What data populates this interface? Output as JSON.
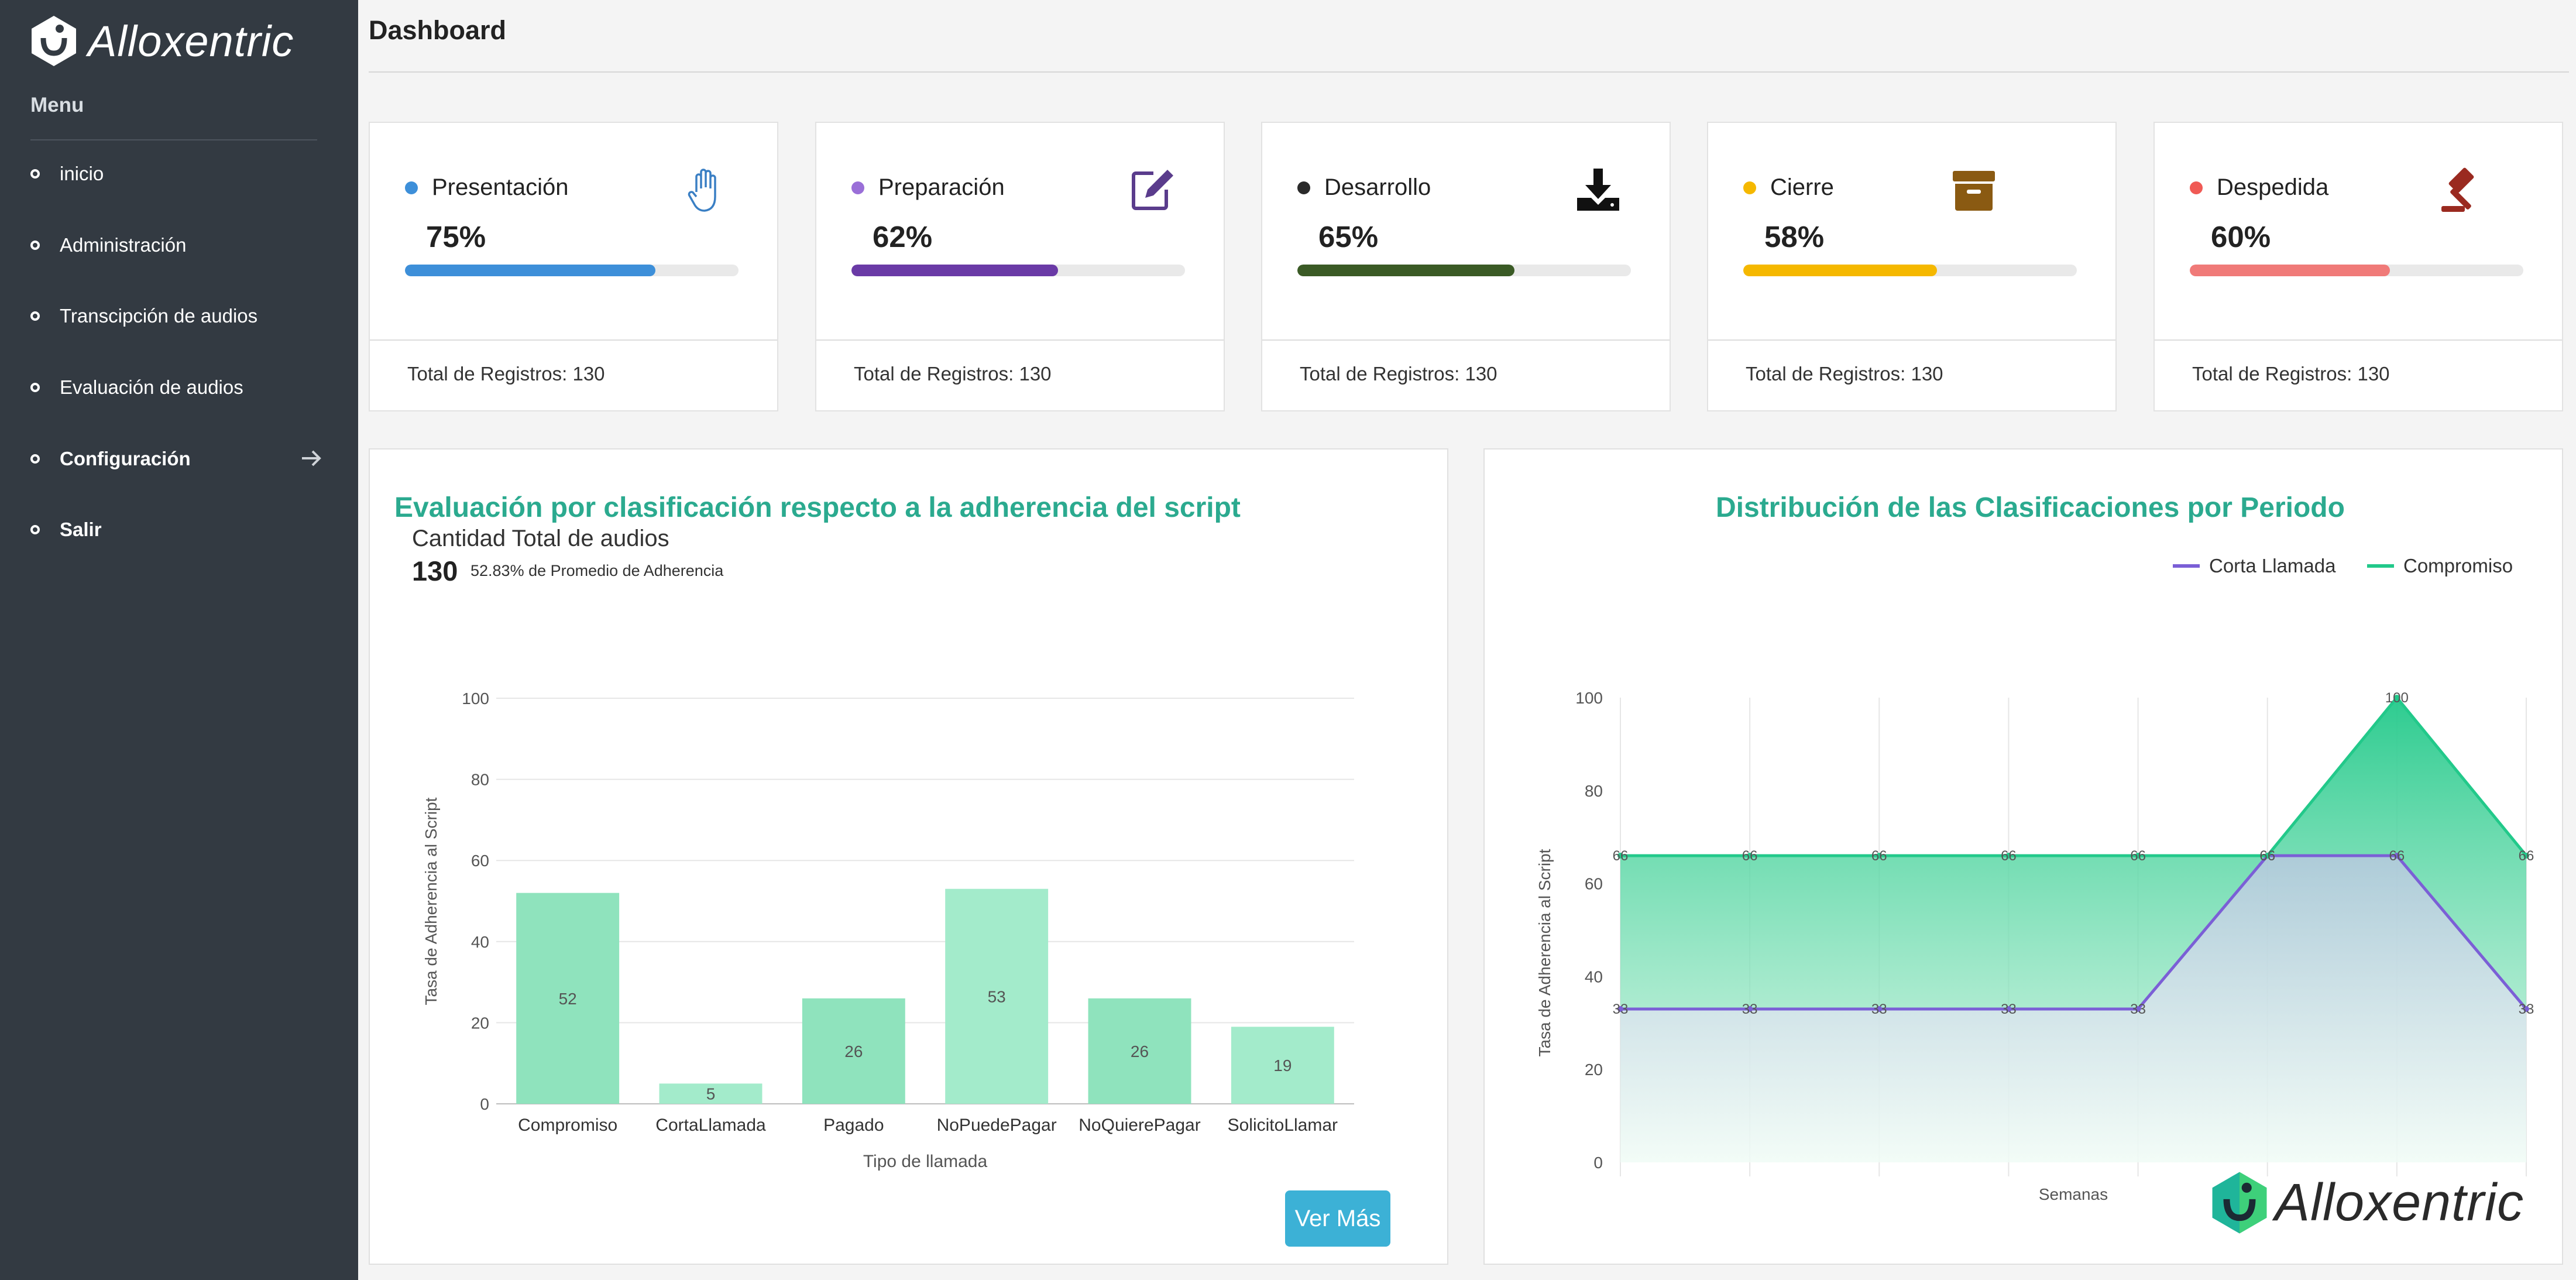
{
  "app": {
    "brand": "Alloxentric"
  },
  "sidebar": {
    "menu_title": "Menu",
    "items": [
      {
        "label": "inicio"
      },
      {
        "label": "Administración"
      },
      {
        "label": "Transcipción de audios"
      },
      {
        "label": "Evaluación de audios"
      },
      {
        "label": "Configuración"
      },
      {
        "label": "Salir"
      }
    ]
  },
  "header": {
    "title": "Dashboard"
  },
  "cards": [
    {
      "label": "Presentación",
      "percent": "75%",
      "value": 0.75,
      "footer": "Total de Registros: 130",
      "color": "#3d8fd9",
      "icon": "hand-icon"
    },
    {
      "label": "Preparación",
      "percent": "62%",
      "value": 0.62,
      "footer": "Total de Registros: 130",
      "color": "#6a3aa6",
      "icon": "edit-icon"
    },
    {
      "label": "Desarrollo",
      "percent": "65%",
      "value": 0.65,
      "footer": "Total de Registros: 130",
      "color": "#3a5a25",
      "icon": "download-icon"
    },
    {
      "label": "Cierre",
      "percent": "58%",
      "value": 0.58,
      "footer": "Total de Registros: 130",
      "color": "#f5b800",
      "icon": "archive-icon"
    },
    {
      "label": "Despedida",
      "percent": "60%",
      "value": 0.6,
      "footer": "Total de Registros: 130",
      "color": "#f07a78",
      "icon": "gavel-icon"
    }
  ],
  "left_panel": {
    "title": "Evaluación por clasificación respecto a la adherencia del script",
    "subtitle": "Cantidad Total de audios",
    "total": "130",
    "note": "52.83% de Promedio de Adherencia",
    "button": "Ver Más"
  },
  "right_panel": {
    "title": "Distribución de las Clasificaciones por Periodo",
    "brand": "Alloxentric"
  },
  "chart_data": [
    {
      "type": "bar",
      "categories": [
        "Compromiso",
        "CortaLlamada",
        "Pagado",
        "NoPuedePagar",
        "NoQuierePagar",
        "SolicitoLlamar"
      ],
      "values": [
        52,
        5,
        26,
        53,
        26,
        19
      ],
      "data_labels": [
        "52",
        "5",
        "26",
        "53",
        "26",
        "19"
      ],
      "xlabel": "Tipo de llamada",
      "ylabel": "Tasa de Adherencia al Script",
      "ylim": [
        0,
        100
      ],
      "yticks": [
        "0",
        "20",
        "40",
        "60",
        "80",
        "100"
      ],
      "grid": true,
      "colors": [
        "#8fe3bd",
        "#a3ebcb",
        "#8fe3bd",
        "#a3ebcb",
        "#8fe3bd",
        "#a3ebcb"
      ]
    },
    {
      "type": "area",
      "x": [
        1,
        2,
        3,
        4,
        5,
        6,
        7,
        8
      ],
      "series": [
        {
          "name": "Corta Llamada",
          "values": [
            33,
            33,
            33,
            33,
            33,
            66,
            66,
            33
          ],
          "color": "#7b5fd6"
        },
        {
          "name": "Compromiso",
          "values": [
            66,
            66,
            66,
            66,
            66,
            66,
            100,
            66
          ],
          "color": "#22c98a"
        }
      ],
      "labels_corta": [
        "33",
        "33",
        "33",
        "33",
        "33",
        "66",
        "66",
        "33"
      ],
      "labels_compromiso": [
        "66",
        "66",
        "66",
        "66",
        "66",
        "66",
        "100",
        "66"
      ],
      "xlabel": "Semanas",
      "ylabel": "Tasa de Adherencia al Script",
      "ylim": [
        0,
        100
      ],
      "yticks": [
        "0",
        "20",
        "40",
        "60",
        "80",
        "100"
      ],
      "legend": "top-right",
      "grid": true
    }
  ]
}
